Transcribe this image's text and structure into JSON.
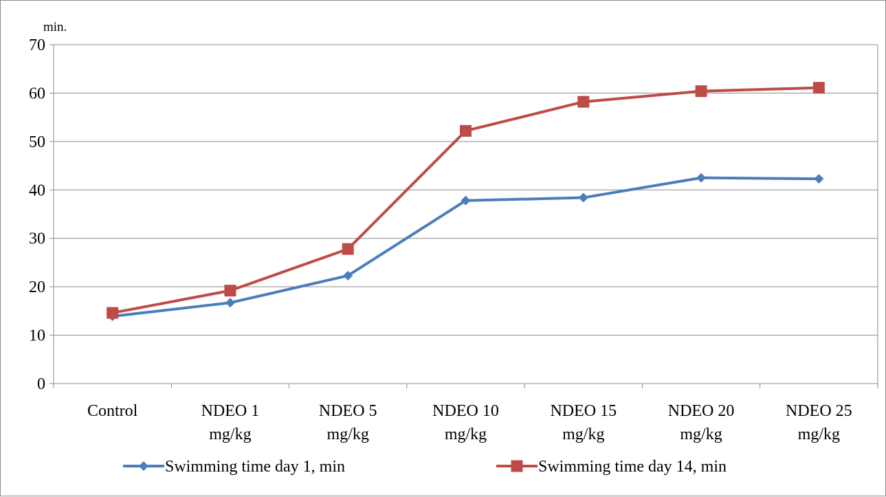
{
  "chart_data": {
    "type": "line",
    "title": "",
    "xlabel": "",
    "ylabel": "min.",
    "ylim": [
      0,
      70
    ],
    "yticks": [
      0,
      10,
      20,
      30,
      40,
      50,
      60,
      70
    ],
    "grid": true,
    "legend": "bottom",
    "categories": [
      [
        "Control"
      ],
      [
        "NDEO 1",
        "mg/kg"
      ],
      [
        "NDEO 5",
        "mg/kg"
      ],
      [
        "NDEO 10",
        "mg/kg"
      ],
      [
        "NDEO 15",
        "mg/kg"
      ],
      [
        "NDEO 20",
        "mg/kg"
      ],
      [
        "NDEO 25",
        "mg/kg"
      ]
    ],
    "series": [
      {
        "name": "Swimming time day 1, min",
        "color": "#4a7ebb",
        "marker": "diamond",
        "values": [
          13.9,
          16.7,
          22.3,
          37.8,
          38.4,
          42.5,
          42.3
        ]
      },
      {
        "name": "Swimming time day 14, min",
        "color": "#be4b48",
        "marker": "square",
        "values": [
          14.6,
          19.2,
          27.8,
          52.2,
          58.2,
          60.4,
          61.1
        ]
      }
    ]
  }
}
